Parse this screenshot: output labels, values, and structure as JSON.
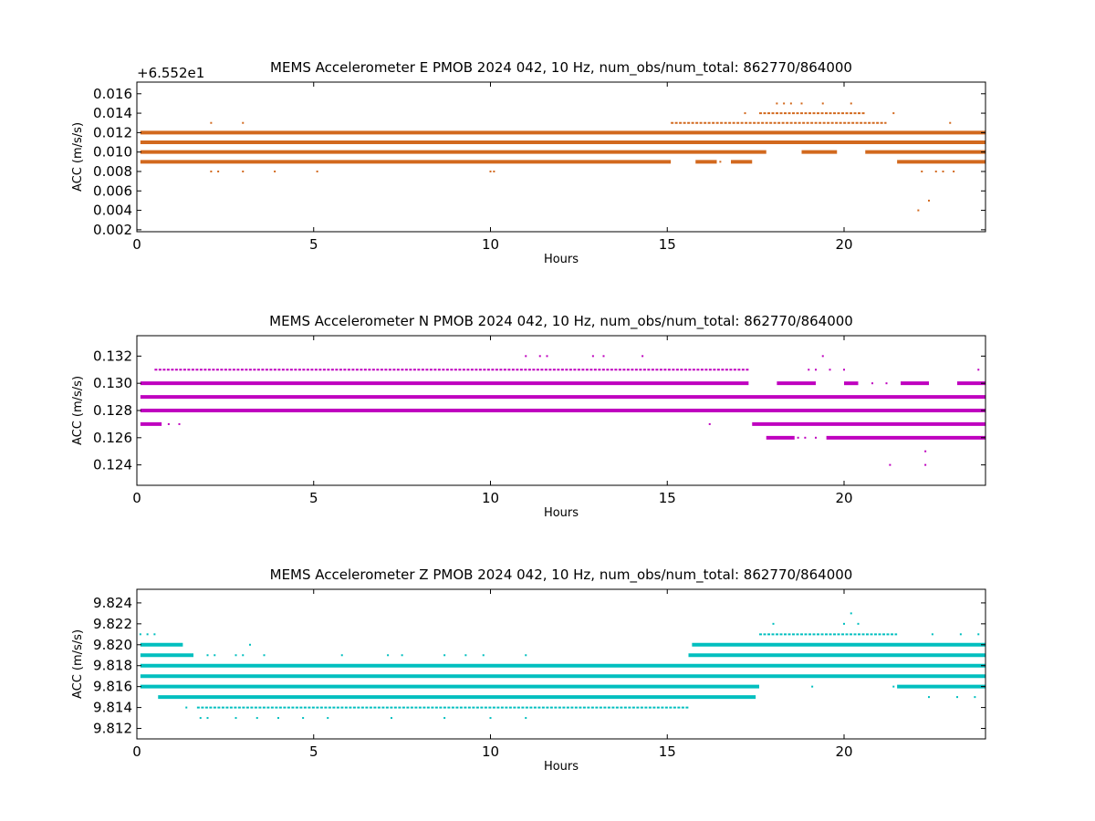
{
  "chart_data": [
    {
      "type": "scatter",
      "title": "MEMS Accelerometer E PMOB 2024 042, 10 Hz, num_obs/num_total: 862770/864000",
      "xlabel": "Hours",
      "ylabel": "ACC (m/s/s)",
      "y_offset_label": "+6.552e1",
      "xlim": [
        0,
        24
      ],
      "ylim": [
        0.0018,
        0.0172
      ],
      "xticks": [
        0,
        5,
        10,
        15,
        20
      ],
      "yticks": [
        0.002,
        0.004,
        0.006,
        0.008,
        0.01,
        0.012,
        0.014,
        0.016
      ],
      "ytick_labels": [
        "0.002",
        "0.004",
        "0.006",
        "0.008",
        "0.010",
        "0.012",
        "0.014",
        "0.016"
      ],
      "color": "#d2691e",
      "grid": false,
      "levels": [
        {
          "y": 0.012,
          "segments": [
            [
              0.1,
              24.0
            ]
          ],
          "thick": true
        },
        {
          "y": 0.011,
          "segments": [
            [
              0.1,
              24.0
            ]
          ],
          "thick": true
        },
        {
          "y": 0.01,
          "segments": [
            [
              0.1,
              17.8
            ],
            [
              18.8,
              19.8
            ],
            [
              20.6,
              24.0
            ]
          ],
          "thick": true
        },
        {
          "y": 0.009,
          "segments": [
            [
              0.1,
              15.1
            ],
            [
              15.8,
              16.4
            ],
            [
              16.8,
              17.4
            ],
            [
              21.5,
              24.0
            ]
          ],
          "thick": true
        },
        {
          "y": 0.013,
          "segments": [
            [
              15.1,
              21.2
            ]
          ],
          "thick": false
        },
        {
          "y": 0.014,
          "segments": [
            [
              17.6,
              20.6
            ]
          ],
          "thick": false
        }
      ],
      "dots": [
        [
          2.1,
          0.013
        ],
        [
          3.0,
          0.013
        ],
        [
          2.1,
          0.008
        ],
        [
          2.3,
          0.008
        ],
        [
          3.0,
          0.008
        ],
        [
          3.9,
          0.008
        ],
        [
          5.1,
          0.008
        ],
        [
          10.0,
          0.008
        ],
        [
          10.1,
          0.008
        ],
        [
          18.1,
          0.015
        ],
        [
          18.3,
          0.015
        ],
        [
          18.5,
          0.015
        ],
        [
          18.8,
          0.015
        ],
        [
          19.4,
          0.015
        ],
        [
          20.2,
          0.015
        ],
        [
          17.2,
          0.014
        ],
        [
          21.4,
          0.014
        ],
        [
          23.0,
          0.013
        ],
        [
          22.2,
          0.008
        ],
        [
          22.4,
          0.005
        ],
        [
          22.1,
          0.004
        ],
        [
          16.5,
          0.009
        ],
        [
          22.6,
          0.008
        ],
        [
          22.8,
          0.008
        ],
        [
          23.1,
          0.008
        ]
      ]
    },
    {
      "type": "scatter",
      "title": "MEMS Accelerometer N PMOB 2024 042, 10 Hz, num_obs/num_total: 862770/864000",
      "xlabel": "Hours",
      "ylabel": "ACC (m/s/s)",
      "xlim": [
        0,
        24
      ],
      "ylim": [
        0.1225,
        0.1335
      ],
      "xticks": [
        0,
        5,
        10,
        15,
        20
      ],
      "yticks": [
        0.124,
        0.126,
        0.128,
        0.13,
        0.132
      ],
      "ytick_labels": [
        "0.124",
        "0.126",
        "0.128",
        "0.130",
        "0.132"
      ],
      "color": "#bf00bf",
      "grid": false,
      "levels": [
        {
          "y": 0.129,
          "segments": [
            [
              0.1,
              24.0
            ]
          ],
          "thick": true
        },
        {
          "y": 0.128,
          "segments": [
            [
              0.1,
              24.0
            ]
          ],
          "thick": true
        },
        {
          "y": 0.13,
          "segments": [
            [
              0.1,
              17.3
            ],
            [
              18.1,
              19.2
            ],
            [
              20.0,
              20.4
            ],
            [
              21.6,
              22.4
            ],
            [
              23.2,
              24.0
            ]
          ],
          "thick": true
        },
        {
          "y": 0.131,
          "segments": [
            [
              0.5,
              17.3
            ]
          ],
          "thick": false
        },
        {
          "y": 0.127,
          "segments": [
            [
              0.1,
              0.7
            ],
            [
              17.4,
              24.0
            ]
          ],
          "thick": true
        },
        {
          "y": 0.126,
          "segments": [
            [
              17.8,
              18.6
            ],
            [
              19.5,
              24.0
            ]
          ],
          "thick": true
        }
      ],
      "dots": [
        [
          11.0,
          0.132
        ],
        [
          11.4,
          0.132
        ],
        [
          11.6,
          0.132
        ],
        [
          12.9,
          0.132
        ],
        [
          13.2,
          0.132
        ],
        [
          14.3,
          0.132
        ],
        [
          19.4,
          0.132
        ],
        [
          19.0,
          0.131
        ],
        [
          19.2,
          0.131
        ],
        [
          19.6,
          0.131
        ],
        [
          20.0,
          0.131
        ],
        [
          23.8,
          0.131
        ],
        [
          1.2,
          0.127
        ],
        [
          0.9,
          0.127
        ],
        [
          16.2,
          0.127
        ],
        [
          22.3,
          0.125
        ],
        [
          21.3,
          0.124
        ],
        [
          22.3,
          0.124
        ],
        [
          18.7,
          0.126
        ],
        [
          18.9,
          0.126
        ],
        [
          19.2,
          0.126
        ],
        [
          20.8,
          0.13
        ],
        [
          21.2,
          0.13
        ]
      ]
    },
    {
      "type": "scatter",
      "title": "MEMS Accelerometer Z PMOB 2024 042, 10 Hz, num_obs/num_total: 862770/864000",
      "xlabel": "Hours",
      "ylabel": "ACC (m/s/s)",
      "xlim": [
        0,
        24
      ],
      "ylim": [
        9.811,
        9.8253
      ],
      "xticks": [
        0,
        5,
        10,
        15,
        20
      ],
      "yticks": [
        9.812,
        9.814,
        9.816,
        9.818,
        9.82,
        9.822,
        9.824
      ],
      "ytick_labels": [
        "9.812",
        "9.814",
        "9.816",
        "9.818",
        "9.820",
        "9.822",
        "9.824"
      ],
      "color": "#00bfbf",
      "grid": false,
      "levels": [
        {
          "y": 9.817,
          "segments": [
            [
              0.1,
              24.0
            ]
          ],
          "thick": true
        },
        {
          "y": 9.818,
          "segments": [
            [
              0.1,
              24.0
            ]
          ],
          "thick": true
        },
        {
          "y": 9.816,
          "segments": [
            [
              0.1,
              17.6
            ],
            [
              21.5,
              24.0
            ]
          ],
          "thick": true
        },
        {
          "y": 9.815,
          "segments": [
            [
              0.6,
              17.5
            ]
          ],
          "thick": true
        },
        {
          "y": 9.819,
          "segments": [
            [
              0.1,
              1.6
            ],
            [
              15.6,
              24.0
            ]
          ],
          "thick": true
        },
        {
          "y": 9.82,
          "segments": [
            [
              0.1,
              1.3
            ],
            [
              15.7,
              24.0
            ]
          ],
          "thick": true
        },
        {
          "y": 9.814,
          "segments": [
            [
              1.7,
              15.6
            ]
          ],
          "thick": false
        },
        {
          "y": 9.821,
          "segments": [
            [
              17.6,
              21.5
            ]
          ],
          "thick": false
        }
      ],
      "dots": [
        [
          0.1,
          9.821
        ],
        [
          0.3,
          9.821
        ],
        [
          0.5,
          9.821
        ],
        [
          3.2,
          9.82
        ],
        [
          18.0,
          9.822
        ],
        [
          20.2,
          9.823
        ],
        [
          20.0,
          9.822
        ],
        [
          20.4,
          9.822
        ],
        [
          2.0,
          9.819
        ],
        [
          2.2,
          9.819
        ],
        [
          2.8,
          9.819
        ],
        [
          3.0,
          9.819
        ],
        [
          3.6,
          9.819
        ],
        [
          5.8,
          9.819
        ],
        [
          7.1,
          9.819
        ],
        [
          7.5,
          9.819
        ],
        [
          8.7,
          9.819
        ],
        [
          9.3,
          9.819
        ],
        [
          9.8,
          9.819
        ],
        [
          11.0,
          9.819
        ],
        [
          1.4,
          9.814
        ],
        [
          1.8,
          9.813
        ],
        [
          2.0,
          9.813
        ],
        [
          2.8,
          9.813
        ],
        [
          3.4,
          9.813
        ],
        [
          4.0,
          9.813
        ],
        [
          4.7,
          9.813
        ],
        [
          5.4,
          9.813
        ],
        [
          7.2,
          9.813
        ],
        [
          8.7,
          9.813
        ],
        [
          10.0,
          9.813
        ],
        [
          11.0,
          9.813
        ],
        [
          22.5,
          9.821
        ],
        [
          23.3,
          9.821
        ],
        [
          23.8,
          9.821
        ],
        [
          18.3,
          9.817
        ],
        [
          19.1,
          9.816
        ],
        [
          21.4,
          9.816
        ],
        [
          22.4,
          9.815
        ],
        [
          23.2,
          9.815
        ],
        [
          23.7,
          9.815
        ]
      ]
    }
  ]
}
